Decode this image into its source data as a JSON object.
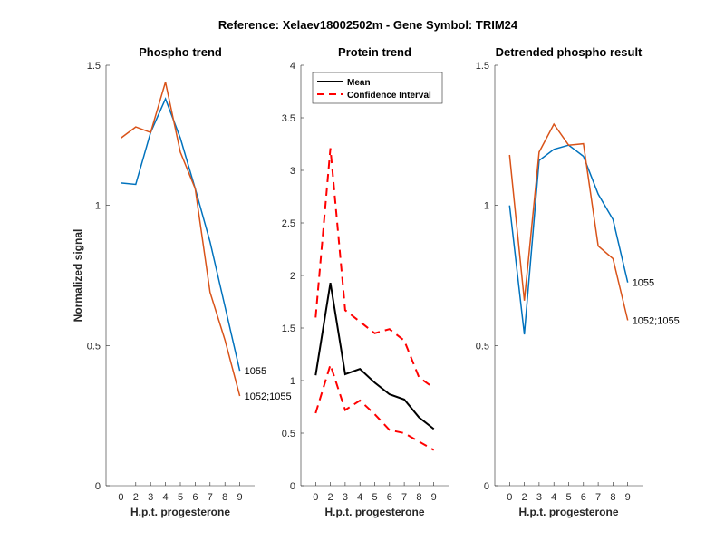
{
  "figure": {
    "suptitle": "Reference:  Xelaev18002502m - Gene Symbol:  TRIM24"
  },
  "chart_data": [
    {
      "type": "line",
      "title": "Phospho trend",
      "xlabel": "H.p.t. progesterone",
      "ylabel": "Normalized signal",
      "x_tick_labels": [
        "0",
        "2",
        "3",
        "4",
        "5",
        "6",
        "7",
        "8",
        "9"
      ],
      "xlim": [
        0,
        10
      ],
      "ylim": [
        0,
        1.5
      ],
      "y_ticks": [
        0,
        0.5,
        1,
        1.5
      ],
      "y_tick_labels": [
        "0",
        "0.5",
        "1",
        "1.5"
      ],
      "grid": false,
      "series": [
        {
          "name": "1055",
          "color": "#0072BD",
          "values": [
            1.08,
            1.075,
            1.26,
            1.38,
            1.24,
            1.06,
            0.87,
            0.64,
            0.41
          ]
        },
        {
          "name": "1052;1055",
          "color": "#D95319",
          "values": [
            1.24,
            1.28,
            1.26,
            1.44,
            1.19,
            1.06,
            0.69,
            0.52,
            0.32
          ]
        }
      ]
    },
    {
      "type": "line",
      "title": "Protein trend",
      "xlabel": "H.p.t. progesterone",
      "ylabel": "",
      "x_tick_labels": [
        "0",
        "2",
        "3",
        "4",
        "5",
        "6",
        "7",
        "8",
        "9"
      ],
      "xlim": [
        0,
        10
      ],
      "ylim": [
        0,
        4
      ],
      "y_ticks": [
        0,
        0.5,
        1,
        1.5,
        2,
        2.5,
        3,
        3.5,
        4
      ],
      "y_tick_labels": [
        "0",
        "0.5",
        "1",
        "1.5",
        "2",
        "2.5",
        "3",
        "3.5",
        "4"
      ],
      "grid": false,
      "legend": {
        "position": "top-right",
        "entries": [
          "Mean",
          "Confidence Interval"
        ]
      },
      "series": [
        {
          "name": "Mean",
          "color": "#000000",
          "style": "solid",
          "values": [
            1.05,
            1.93,
            1.06,
            1.11,
            0.98,
            0.87,
            0.82,
            0.65,
            0.54
          ]
        },
        {
          "name": "Confidence Interval (upper)",
          "color": "#FF0000",
          "style": "dashed",
          "values": [
            1.6,
            3.21,
            1.67,
            1.56,
            1.45,
            1.49,
            1.38,
            1.03,
            0.93
          ]
        },
        {
          "name": "Confidence Interval (lower)",
          "color": "#FF0000",
          "style": "dashed",
          "values": [
            0.69,
            1.15,
            0.72,
            0.81,
            0.68,
            0.53,
            0.5,
            0.42,
            0.34
          ]
        }
      ]
    },
    {
      "type": "line",
      "title": "Detrended phospho result",
      "xlabel": "H.p.t. progesterone",
      "ylabel": "",
      "x_tick_labels": [
        "0",
        "2",
        "3",
        "4",
        "5",
        "6",
        "7",
        "8",
        "9"
      ],
      "xlim": [
        0,
        10
      ],
      "ylim": [
        0,
        1.5
      ],
      "y_ticks": [
        0,
        0.5,
        1,
        1.5
      ],
      "y_tick_labels": [
        "0",
        "0.5",
        "1",
        "1.5"
      ],
      "grid": false,
      "series": [
        {
          "name": "1055",
          "color": "#0072BD",
          "values": [
            1.0,
            0.54,
            1.16,
            1.2,
            1.215,
            1.175,
            1.04,
            0.95,
            0.725
          ]
        },
        {
          "name": "1052;1055",
          "color": "#D95319",
          "values": [
            1.18,
            0.66,
            1.19,
            1.29,
            1.215,
            1.22,
            0.855,
            0.81,
            0.59
          ]
        }
      ]
    }
  ]
}
